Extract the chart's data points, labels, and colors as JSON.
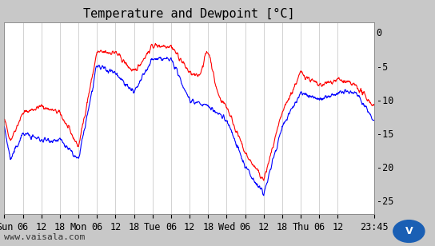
{
  "title": "Temperature and Dewpoint [°C]",
  "ylabel_right": [
    "0",
    "-5",
    "-10",
    "-15",
    "-20",
    "-25"
  ],
  "yticks": [
    0,
    -5,
    -10,
    -15,
    -20,
    -25
  ],
  "ylim": [
    -27,
    1.5
  ],
  "xlabel_bottom": [
    "Sun",
    "06",
    "12",
    "18",
    "Mon",
    "06",
    "12",
    "18",
    "Tue",
    "06",
    "12",
    "18",
    "Wed",
    "06",
    "12",
    "18",
    "Thu",
    "06",
    "12",
    "23:45"
  ],
  "xtick_positions": [
    0,
    6,
    12,
    18,
    24,
    30,
    36,
    42,
    48,
    54,
    60,
    66,
    72,
    78,
    84,
    90,
    96,
    102,
    108,
    119.75
  ],
  "xlim": [
    0,
    119.75
  ],
  "watermark": "www.vaisala.com",
  "background_color": "#c8c8c8",
  "plot_bg_color": "#ffffff",
  "grid_color": "#c0c0c0",
  "temp_color": "#ff0000",
  "dewpoint_color": "#0000ff",
  "title_fontsize": 11,
  "tick_fontsize": 8.5,
  "watermark_fontsize": 8
}
